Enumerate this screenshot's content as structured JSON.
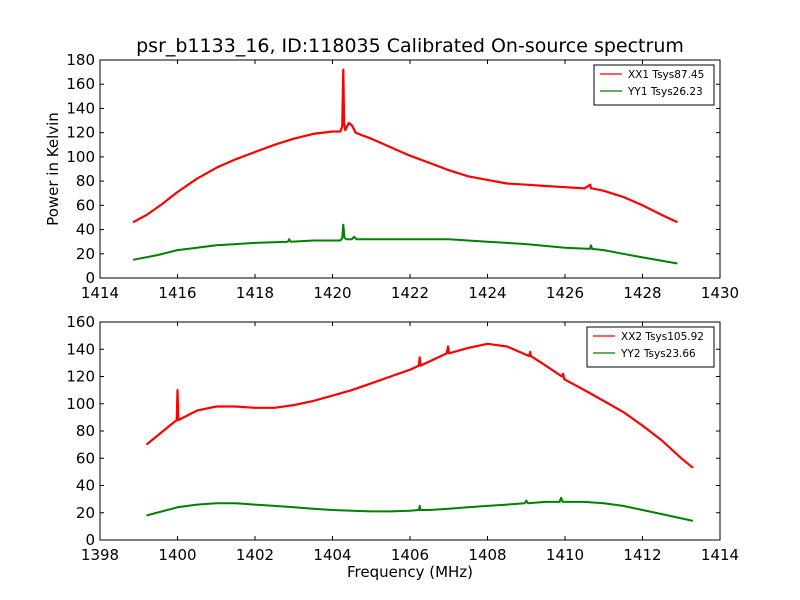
{
  "colors": {
    "xx": "#ff0000",
    "yy": "#008000",
    "axis": "#000000",
    "background": "#ffffff"
  },
  "chart_data": [
    {
      "type": "line",
      "title": "psr_b1133_16, ID:118035 Calibrated On-source spectrum",
      "xlabel": "",
      "ylabel": "Power in Kelvin",
      "xlim": [
        1414,
        1430
      ],
      "ylim": [
        0,
        180
      ],
      "xticks": [
        1414,
        1416,
        1418,
        1420,
        1422,
        1424,
        1426,
        1428,
        1430
      ],
      "yticks": [
        0,
        20,
        40,
        60,
        80,
        100,
        120,
        140,
        160,
        180
      ],
      "legend_position": "top-right",
      "series": [
        {
          "name": "XX1 Tsys87.45",
          "color": "#ff0000",
          "x": [
            1414.85,
            1415.2,
            1415.6,
            1416,
            1416.5,
            1417,
            1417.5,
            1418,
            1418.5,
            1419,
            1419.5,
            1420,
            1420.2,
            1420.25,
            1420.28,
            1420.3,
            1420.33,
            1420.36,
            1420.42,
            1420.5,
            1420.6,
            1420.75,
            1421,
            1421.5,
            1422,
            1422.5,
            1423,
            1423.5,
            1424,
            1424.5,
            1425,
            1425.5,
            1426,
            1426.5,
            1426.65,
            1426.67,
            1426.7,
            1427,
            1427.5,
            1428,
            1428.5,
            1428.9
          ],
          "values": [
            46,
            52,
            61,
            71,
            82,
            91,
            98,
            104,
            110,
            115,
            119,
            121,
            121,
            125,
            172,
            128,
            122,
            124,
            128,
            126,
            120,
            118,
            115,
            108,
            101,
            95,
            89,
            84,
            81,
            78,
            77,
            76,
            75,
            74,
            77,
            74,
            74,
            72,
            67,
            60,
            52,
            46
          ]
        },
        {
          "name": "YY1 Tsys26.23",
          "color": "#008000",
          "x": [
            1414.85,
            1415.5,
            1416,
            1416.5,
            1417,
            1417.5,
            1418,
            1418.5,
            1418.85,
            1418.88,
            1418.92,
            1419.5,
            1420,
            1420.2,
            1420.25,
            1420.28,
            1420.31,
            1420.36,
            1420.5,
            1420.56,
            1420.62,
            1421,
            1422,
            1423,
            1424,
            1425,
            1426,
            1426.64,
            1426.67,
            1426.7,
            1427,
            1427.5,
            1428,
            1428.9
          ],
          "values": [
            15,
            19,
            23,
            25,
            27,
            28,
            29,
            29.5,
            30,
            32,
            30,
            31,
            31,
            31,
            33,
            44,
            33,
            32,
            32,
            34,
            32,
            32,
            32,
            32,
            30,
            28,
            25,
            24,
            27,
            24,
            23,
            20,
            17,
            12
          ]
        }
      ]
    },
    {
      "type": "line",
      "title": "",
      "xlabel": "Frequency (MHz)",
      "ylabel": "",
      "xlim": [
        1398,
        1414
      ],
      "ylim": [
        0,
        160
      ],
      "xticks": [
        1398,
        1400,
        1402,
        1404,
        1406,
        1408,
        1410,
        1412,
        1414
      ],
      "yticks": [
        0,
        20,
        40,
        60,
        80,
        100,
        120,
        140,
        160
      ],
      "legend_position": "top-right",
      "series": [
        {
          "name": "XX2 Tsys105.92",
          "color": "#ff0000",
          "x": [
            1399.2,
            1399.5,
            1399.8,
            1399.98,
            1400.0,
            1400.02,
            1400.5,
            1401,
            1401.5,
            1402,
            1402.5,
            1403,
            1403.5,
            1404,
            1404.5,
            1405,
            1405.5,
            1406,
            1406.23,
            1406.25,
            1406.27,
            1406.5,
            1406.95,
            1406.98,
            1407.01,
            1407.5,
            1408,
            1408.5,
            1409.08,
            1409.1,
            1409.12,
            1409.5,
            1409.92,
            1409.95,
            1409.98,
            1410.5,
            1411,
            1411.5,
            1412,
            1412.5,
            1413,
            1413.3
          ],
          "values": [
            70,
            77,
            84,
            88,
            110,
            88,
            95,
            98,
            98,
            97,
            97,
            99,
            102,
            106,
            110,
            115,
            120,
            125,
            128,
            134,
            128,
            131,
            137,
            142,
            137,
            141,
            144,
            142,
            135,
            138,
            135,
            128,
            120,
            122,
            118,
            110,
            102,
            94,
            84,
            73,
            60,
            53
          ]
        },
        {
          "name": "YY2 Tsys23.66",
          "color": "#008000",
          "x": [
            1399.2,
            1399.6,
            1400,
            1400.5,
            1401,
            1401.5,
            1402,
            1402.5,
            1403,
            1403.5,
            1404,
            1404.5,
            1405,
            1405.5,
            1406,
            1406.23,
            1406.25,
            1406.27,
            1406.5,
            1407,
            1407.5,
            1408,
            1408.5,
            1408.96,
            1409,
            1409.04,
            1409.5,
            1409.86,
            1409.9,
            1409.94,
            1410.5,
            1411,
            1411.5,
            1412,
            1412.5,
            1413.3
          ],
          "values": [
            18,
            21,
            24,
            26,
            27,
            27,
            26,
            25,
            24,
            23,
            22,
            21.5,
            21,
            21,
            21.5,
            22,
            25,
            22,
            22,
            23,
            24,
            25,
            26,
            27,
            29,
            27,
            28,
            28,
            31,
            28,
            28,
            27,
            25,
            22,
            19,
            14
          ]
        }
      ]
    }
  ]
}
